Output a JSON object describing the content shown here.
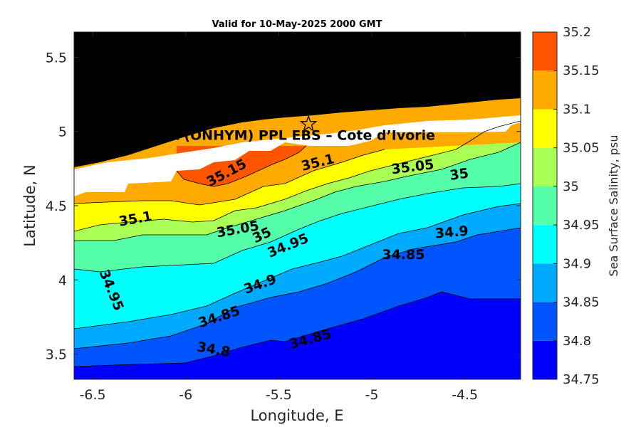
{
  "chart_data": {
    "type": "heatmap",
    "title": "Valid for 10-May-2025 2000 GMT",
    "xlabel": "Longitude, E",
    "ylabel": "Latitude, N",
    "xlim": [
      -6.6,
      -4.2
    ],
    "ylim": [
      3.33,
      5.67
    ],
    "xticks": [
      -6.5,
      -6,
      -5.5,
      -5,
      -4.5
    ],
    "xtick_labels": [
      "-6.5",
      "-6",
      "-5.5",
      "-5",
      "-4.5"
    ],
    "yticks": [
      3.5,
      4,
      4.5,
      5,
      5.5
    ],
    "ytick_labels": [
      "3.5",
      "4",
      "4.5",
      "5",
      "5.5"
    ],
    "colorbar": {
      "label": "Sea Surface Salinity, psu",
      "levels": [
        34.75,
        34.8,
        34.85,
        34.9,
        34.95,
        35,
        35.05,
        35.1,
        35.15,
        35.2
      ],
      "tick_labels": [
        "34.75",
        "34.8",
        "34.85",
        "34.9",
        "34.95",
        "35",
        "35.05",
        "35.1",
        "35.15",
        "35.2"
      ],
      "colors": [
        "#0000ff",
        "#0055ff",
        "#00aaff",
        "#00ffff",
        "#55ffaa",
        "#aaff55",
        "#ffff00",
        "#ffaa00",
        "#ff5500"
      ]
    },
    "land_color": "#000000",
    "contour_labels": [
      {
        "text": "35.15",
        "lon": -5.78,
        "lat": 4.72,
        "angle": -28
      },
      {
        "text": "35.1",
        "lon": -5.29,
        "lat": 4.79,
        "angle": -14
      },
      {
        "text": "35.05",
        "lon": -4.78,
        "lat": 4.76,
        "angle": -7
      },
      {
        "text": "35",
        "lon": -4.53,
        "lat": 4.71,
        "angle": -8
      },
      {
        "text": "35.1",
        "lon": -6.27,
        "lat": 4.41,
        "angle": -10
      },
      {
        "text": "35.05",
        "lon": -5.72,
        "lat": 4.34,
        "angle": -10
      },
      {
        "text": "35",
        "lon": -5.59,
        "lat": 4.3,
        "angle": -25
      },
      {
        "text": "34.95",
        "lon": -5.45,
        "lat": 4.23,
        "angle": -22
      },
      {
        "text": "34.9",
        "lon": -4.57,
        "lat": 4.32,
        "angle": -5
      },
      {
        "text": "34.85",
        "lon": -4.83,
        "lat": 4.17,
        "angle": 0
      },
      {
        "text": "34.95",
        "lon": -6.4,
        "lat": 3.93,
        "angle": 68
      },
      {
        "text": "34.9",
        "lon": -5.6,
        "lat": 3.97,
        "angle": -20
      },
      {
        "text": "34.85",
        "lon": -5.82,
        "lat": 3.75,
        "angle": -18
      },
      {
        "text": "34.8",
        "lon": -5.85,
        "lat": 3.53,
        "angle": 10
      },
      {
        "text": "34.85",
        "lon": -5.33,
        "lat": 3.6,
        "angle": -15
      }
    ],
    "site": {
      "name": "ONHYM) PPL EBS  – Cote d’Ivorie",
      "prefix": "A (",
      "lon": -5.34,
      "lat": 5.05,
      "marker": "star-icon"
    }
  }
}
